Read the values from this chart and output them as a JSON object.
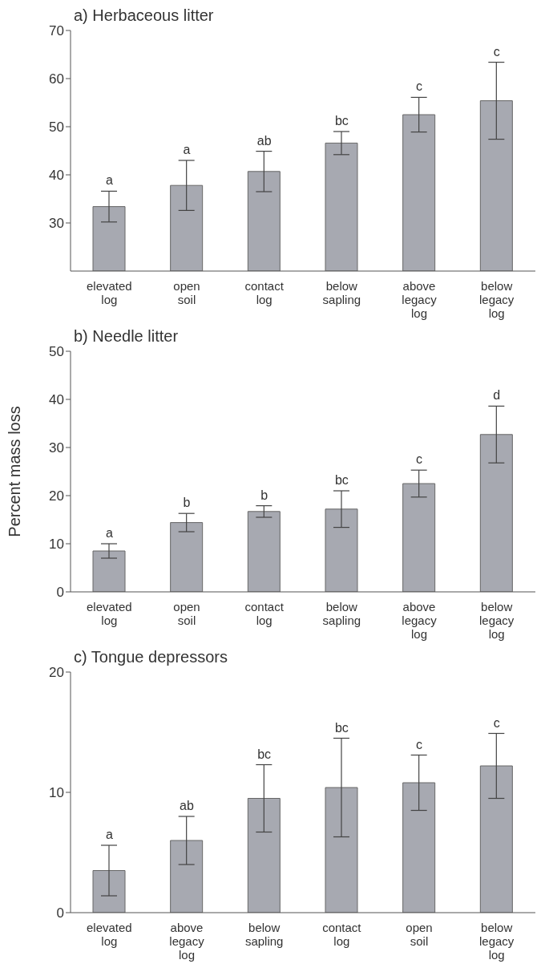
{
  "chart_data": [
    {
      "type": "bar",
      "title": "a) Herbaceous litter",
      "categories": [
        "elevated log",
        "open soil",
        "contact log",
        "below sapling",
        "above legacy log",
        "below legacy log"
      ],
      "color": "#a7a9b1",
      "values": [
        33.4,
        37.8,
        40.7,
        46.6,
        52.5,
        55.4
      ],
      "errors": [
        3.2,
        5.2,
        4.2,
        2.4,
        3.6,
        8
      ],
      "ylim": [
        20,
        70
      ],
      "yticks": [
        30,
        40,
        50,
        60,
        70
      ],
      "grid": false,
      "legend": false,
      "annotations": [
        {
          "text": "a",
          "x": "elevated log",
          "y": 36.6
        },
        {
          "text": "a",
          "x": "open soil",
          "y": 43
        },
        {
          "text": "ab",
          "x": "contact log",
          "y": 44.9
        },
        {
          "text": "bc",
          "x": "below sapling",
          "y": 49
        },
        {
          "text": "c",
          "x": "above legacy log",
          "y": 56.1
        },
        {
          "text": "c",
          "x": "below legacy log",
          "y": 63.4
        }
      ]
    },
    {
      "type": "bar",
      "title": "b) Needle litter",
      "ylabel": "Percent mass loss",
      "categories": [
        "elevated log",
        "open soil",
        "contact log",
        "below sapling",
        "above legacy log",
        "below legacy log"
      ],
      "color": "#a7a9b1",
      "values": [
        8.5,
        14.4,
        16.7,
        17.2,
        22.5,
        32.7
      ],
      "errors": [
        1.5,
        1.9,
        1.2,
        3.8,
        2.8,
        5.9
      ],
      "ylim": [
        0,
        50
      ],
      "yticks": [
        0,
        10,
        20,
        30,
        40,
        50
      ],
      "grid": false,
      "legend": false,
      "annotations": [
        {
          "text": "a",
          "x": "elevated log",
          "y": 10
        },
        {
          "text": "b",
          "x": "open soil",
          "y": 16.3
        },
        {
          "text": "b",
          "x": "contact log",
          "y": 17.9
        },
        {
          "text": "bc",
          "x": "below sapling",
          "y": 21
        },
        {
          "text": "c",
          "x": "above legacy log",
          "y": 25.3
        },
        {
          "text": "d",
          "x": "below legacy log",
          "y": 38.6
        }
      ]
    },
    {
      "type": "bar",
      "title": "c) Tongue depressors",
      "categories": [
        "elevated log",
        "above legacy log",
        "below sapling",
        "contact log",
        "open soil",
        "below legacy log"
      ],
      "color": "#a7a9b1",
      "values": [
        3.5,
        6.0,
        9.5,
        10.4,
        10.8,
        12.2
      ],
      "errors": [
        2.1,
        2.0,
        2.8,
        4.1,
        2.3,
        2.7
      ],
      "ylim": [
        0,
        20
      ],
      "yticks": [
        0,
        10,
        20
      ],
      "grid": false,
      "legend": false,
      "annotations": [
        {
          "text": "a",
          "x": "elevated log",
          "y": 5.6
        },
        {
          "text": "ab",
          "x": "above legacy log",
          "y": 8
        },
        {
          "text": "bc",
          "x": "below sapling",
          "y": 12.3
        },
        {
          "text": "bc",
          "x": "contact log",
          "y": 14.5
        },
        {
          "text": "c",
          "x": "open soil",
          "y": 13.1
        },
        {
          "text": "c",
          "x": "below legacy log",
          "y": 14.9
        }
      ]
    }
  ]
}
